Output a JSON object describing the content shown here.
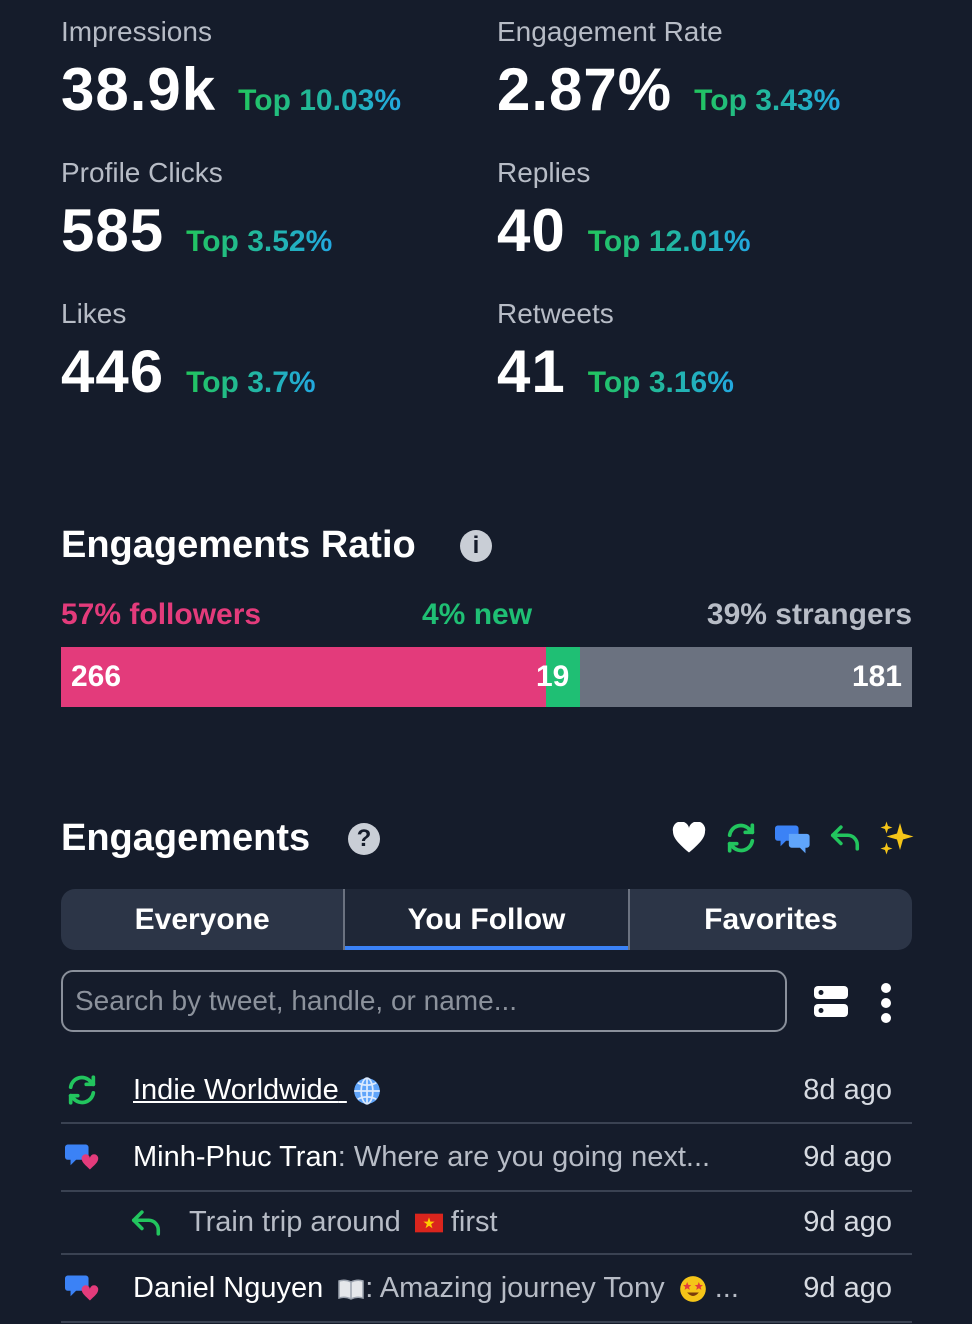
{
  "stats": [
    {
      "label": "Impressions",
      "value": "38.9k",
      "top": "Top 10.03%"
    },
    {
      "label": "Engagement Rate",
      "value": "2.87%",
      "top": "Top 3.43%"
    },
    {
      "label": "Profile Clicks",
      "value": "585",
      "top": "Top 3.52%"
    },
    {
      "label": "Replies",
      "value": "40",
      "top": "Top 12.01%"
    },
    {
      "label": "Likes",
      "value": "446",
      "top": "Top 3.7%"
    },
    {
      "label": "Retweets",
      "value": "41",
      "top": "Top 3.16%"
    }
  ],
  "ratio": {
    "title": "Engagements Ratio",
    "followers_label": "57% followers",
    "new_label": "4% new",
    "strangers_label": "39% strangers",
    "followers_count": "266",
    "new_count": "19",
    "strangers_count": "181",
    "followers_share": 0.57,
    "new_share": 0.04,
    "strangers_share": 0.39,
    "colors": {
      "followers": "#e33b7b",
      "new": "#1fbf74",
      "strangers": "#6b7280"
    }
  },
  "engagements": {
    "title": "Engagements",
    "filter_icons": [
      "heart-icon",
      "retweet-icon",
      "quote-icon",
      "reply-icon",
      "sparkles-icon"
    ],
    "tabs": [
      "Everyone",
      "You Follow",
      "Favorites"
    ],
    "active_tab": "You Follow",
    "search_placeholder": "Search by tweet, handle, or name..."
  },
  "rows": [
    {
      "icon": "retweet-icon",
      "name": "Indie Worldwide",
      "name_emoji": "globe-emoji",
      "message": "",
      "time": "8d ago"
    },
    {
      "icon": "quote-icon",
      "name": "Minh-Phuc Tran",
      "message": ": Where are you going next...",
      "time": "9d ago"
    },
    {
      "icon": "reply-icon",
      "name": "",
      "message_a": "Train trip around",
      "message_b": "first",
      "flag": "vietnam-flag-emoji",
      "time": "9d ago"
    },
    {
      "icon": "quote-icon",
      "name": "Daniel Nguyen",
      "name_emoji": "book-emoji",
      "message": ": Amazing journey Tony",
      "msg_emoji": "star-struck-emoji",
      "message_end": "...",
      "time": "9d ago"
    }
  ]
}
